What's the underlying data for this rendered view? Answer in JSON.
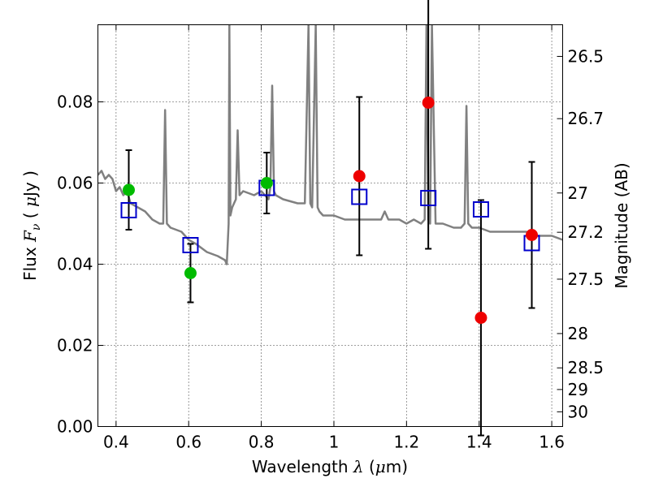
{
  "chart_data": {
    "type": "scatter",
    "xlabel": {
      "prefix": "Wavelength  ",
      "symbol": "λ",
      "unit": " (",
      "mu": "μ",
      "unit_end": "m)"
    },
    "ylabel": {
      "prefix": "Flux  ",
      "symbol": "F",
      "sub": "ν",
      "unit_open": "  ( ",
      "mu": "μ",
      "unit_end": "Jy )"
    },
    "y2label": "Magnitude (AB)",
    "xlim": [
      0.35,
      1.63
    ],
    "ylim": [
      0.0,
      0.099
    ],
    "grid": true,
    "xticks": [
      0.4,
      0.6,
      0.8,
      1.0,
      1.2,
      1.4,
      1.6
    ],
    "xtick_labels": [
      "0.4",
      "0.6",
      "0.8",
      "1",
      "1.2",
      "1.4",
      "1.6"
    ],
    "yticks": [
      0.0,
      0.02,
      0.04,
      0.06,
      0.08
    ],
    "ytick_labels": [
      "0.00",
      "0.02",
      "0.04",
      "0.06",
      "0.08"
    ],
    "magnitude_ticks": [
      "26.5",
      "26.7",
      "27",
      "27.2",
      "27.5",
      "28",
      "28.5",
      "29",
      "30"
    ],
    "series": [
      {
        "style": "line",
        "color": "#808080",
        "x": [
          0.35,
          0.36,
          0.37,
          0.38,
          0.39,
          0.4,
          0.41,
          0.42,
          0.43,
          0.44,
          0.46,
          0.48,
          0.5,
          0.52,
          0.53,
          0.535,
          0.54,
          0.55,
          0.58,
          0.6,
          0.62,
          0.65,
          0.68,
          0.7,
          0.705,
          0.71,
          0.712,
          0.715,
          0.72,
          0.73,
          0.735,
          0.74,
          0.75,
          0.78,
          0.8,
          0.82,
          0.825,
          0.83,
          0.835,
          0.84,
          0.86,
          0.9,
          0.92,
          0.93,
          0.935,
          0.94,
          0.95,
          0.955,
          0.96,
          0.97,
          1.0,
          1.03,
          1.06,
          1.1,
          1.13,
          1.14,
          1.15,
          1.18,
          1.2,
          1.22,
          1.24,
          1.25,
          1.255,
          1.26,
          1.265,
          1.27,
          1.28,
          1.3,
          1.33,
          1.35,
          1.36,
          1.365,
          1.37,
          1.38,
          1.4,
          1.43,
          1.46,
          1.5,
          1.53,
          1.55,
          1.58,
          1.6,
          1.63
        ],
        "y": [
          0.062,
          0.063,
          0.061,
          0.062,
          0.061,
          0.058,
          0.059,
          0.057,
          0.058,
          0.055,
          0.054,
          0.053,
          0.051,
          0.05,
          0.05,
          0.078,
          0.05,
          0.049,
          0.048,
          0.046,
          0.045,
          0.043,
          0.042,
          0.041,
          0.04,
          0.05,
          0.099,
          0.052,
          0.054,
          0.056,
          0.073,
          0.057,
          0.058,
          0.057,
          0.058,
          0.056,
          0.059,
          0.084,
          0.058,
          0.057,
          0.056,
          0.055,
          0.055,
          0.099,
          0.055,
          0.054,
          0.099,
          0.054,
          0.053,
          0.052,
          0.052,
          0.051,
          0.051,
          0.051,
          0.051,
          0.053,
          0.051,
          0.051,
          0.05,
          0.051,
          0.05,
          0.051,
          0.099,
          0.051,
          0.05,
          0.099,
          0.05,
          0.05,
          0.049,
          0.049,
          0.05,
          0.079,
          0.05,
          0.049,
          0.049,
          0.048,
          0.048,
          0.048,
          0.048,
          0.047,
          0.047,
          0.047,
          0.046
        ]
      },
      {
        "style": "open-square",
        "color": "#0000cc",
        "x": [
          0.435,
          0.605,
          0.815,
          1.07,
          1.26,
          1.405,
          1.545
        ],
        "y": [
          0.0533,
          0.0447,
          0.0588,
          0.0566,
          0.0563,
          0.0535,
          0.0452
        ]
      },
      {
        "style": "filled-circle",
        "color": "#00bb00",
        "x": [
          0.435,
          0.605,
          0.815
        ],
        "y": [
          0.0583,
          0.0378,
          0.06
        ],
        "err": [
          0.0098,
          0.0072,
          0.0075
        ]
      },
      {
        "style": "filled-circle",
        "color": "#ee0000",
        "x": [
          1.07,
          1.26,
          1.405,
          1.545
        ],
        "y": [
          0.0617,
          0.0798,
          0.0268,
          0.0472
        ],
        "err": [
          0.0195,
          0.036,
          0.029,
          0.018
        ]
      }
    ]
  }
}
